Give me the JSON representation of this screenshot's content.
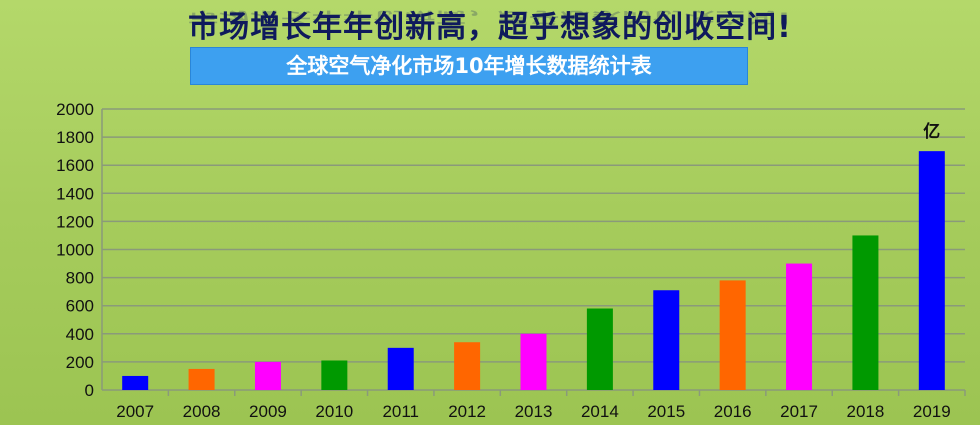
{
  "header": {
    "title": "市场增长年年创新高，超乎想象的创收空间!",
    "subtitle": "全球空气净化市场10年增长数据统计表"
  },
  "chart_data": {
    "type": "bar",
    "title": "全球空气净化市场10年增长数据统计表",
    "categories": [
      "2007",
      "2008",
      "2009",
      "2010",
      "2011",
      "2012",
      "2013",
      "2014",
      "2015",
      "2016",
      "2017",
      "2018",
      "2019"
    ],
    "values": [
      100,
      150,
      200,
      210,
      300,
      340,
      400,
      580,
      710,
      780,
      900,
      1100,
      1700
    ],
    "colors": [
      "#0000ff",
      "#ff6600",
      "#ff00ff",
      "#009900",
      "#0000ff",
      "#ff6600",
      "#ff00ff",
      "#009900",
      "#0000ff",
      "#ff6600",
      "#ff00ff",
      "#009900",
      "#0000ff"
    ],
    "unit_label": "亿",
    "ylim": [
      0,
      2000
    ],
    "yticks": [
      0,
      200,
      400,
      600,
      800,
      1000,
      1200,
      1400,
      1600,
      1800,
      2000
    ],
    "grid": true,
    "legend": "none"
  }
}
